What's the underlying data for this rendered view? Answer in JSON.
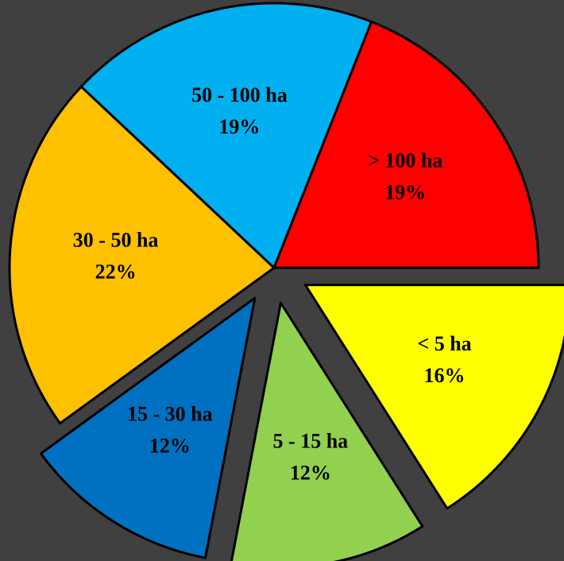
{
  "chart_data": {
    "type": "pie",
    "categories": [
      "< 5 ha",
      "5 - 15 ha",
      "15 - 30 ha",
      "30 - 50 ha",
      "50 - 100 ha",
      "> 100 ha"
    ],
    "values": [
      16,
      12,
      12,
      22,
      19,
      19
    ],
    "value_labels": [
      "16%",
      "12%",
      "12%",
      "22%",
      "19%",
      "19%"
    ],
    "colors": [
      "#ffff00",
      "#92d050",
      "#0070c0",
      "#ffc000",
      "#00b0f0",
      "#ff0000"
    ],
    "explode": [
      true,
      true,
      true,
      false,
      false,
      false
    ]
  }
}
